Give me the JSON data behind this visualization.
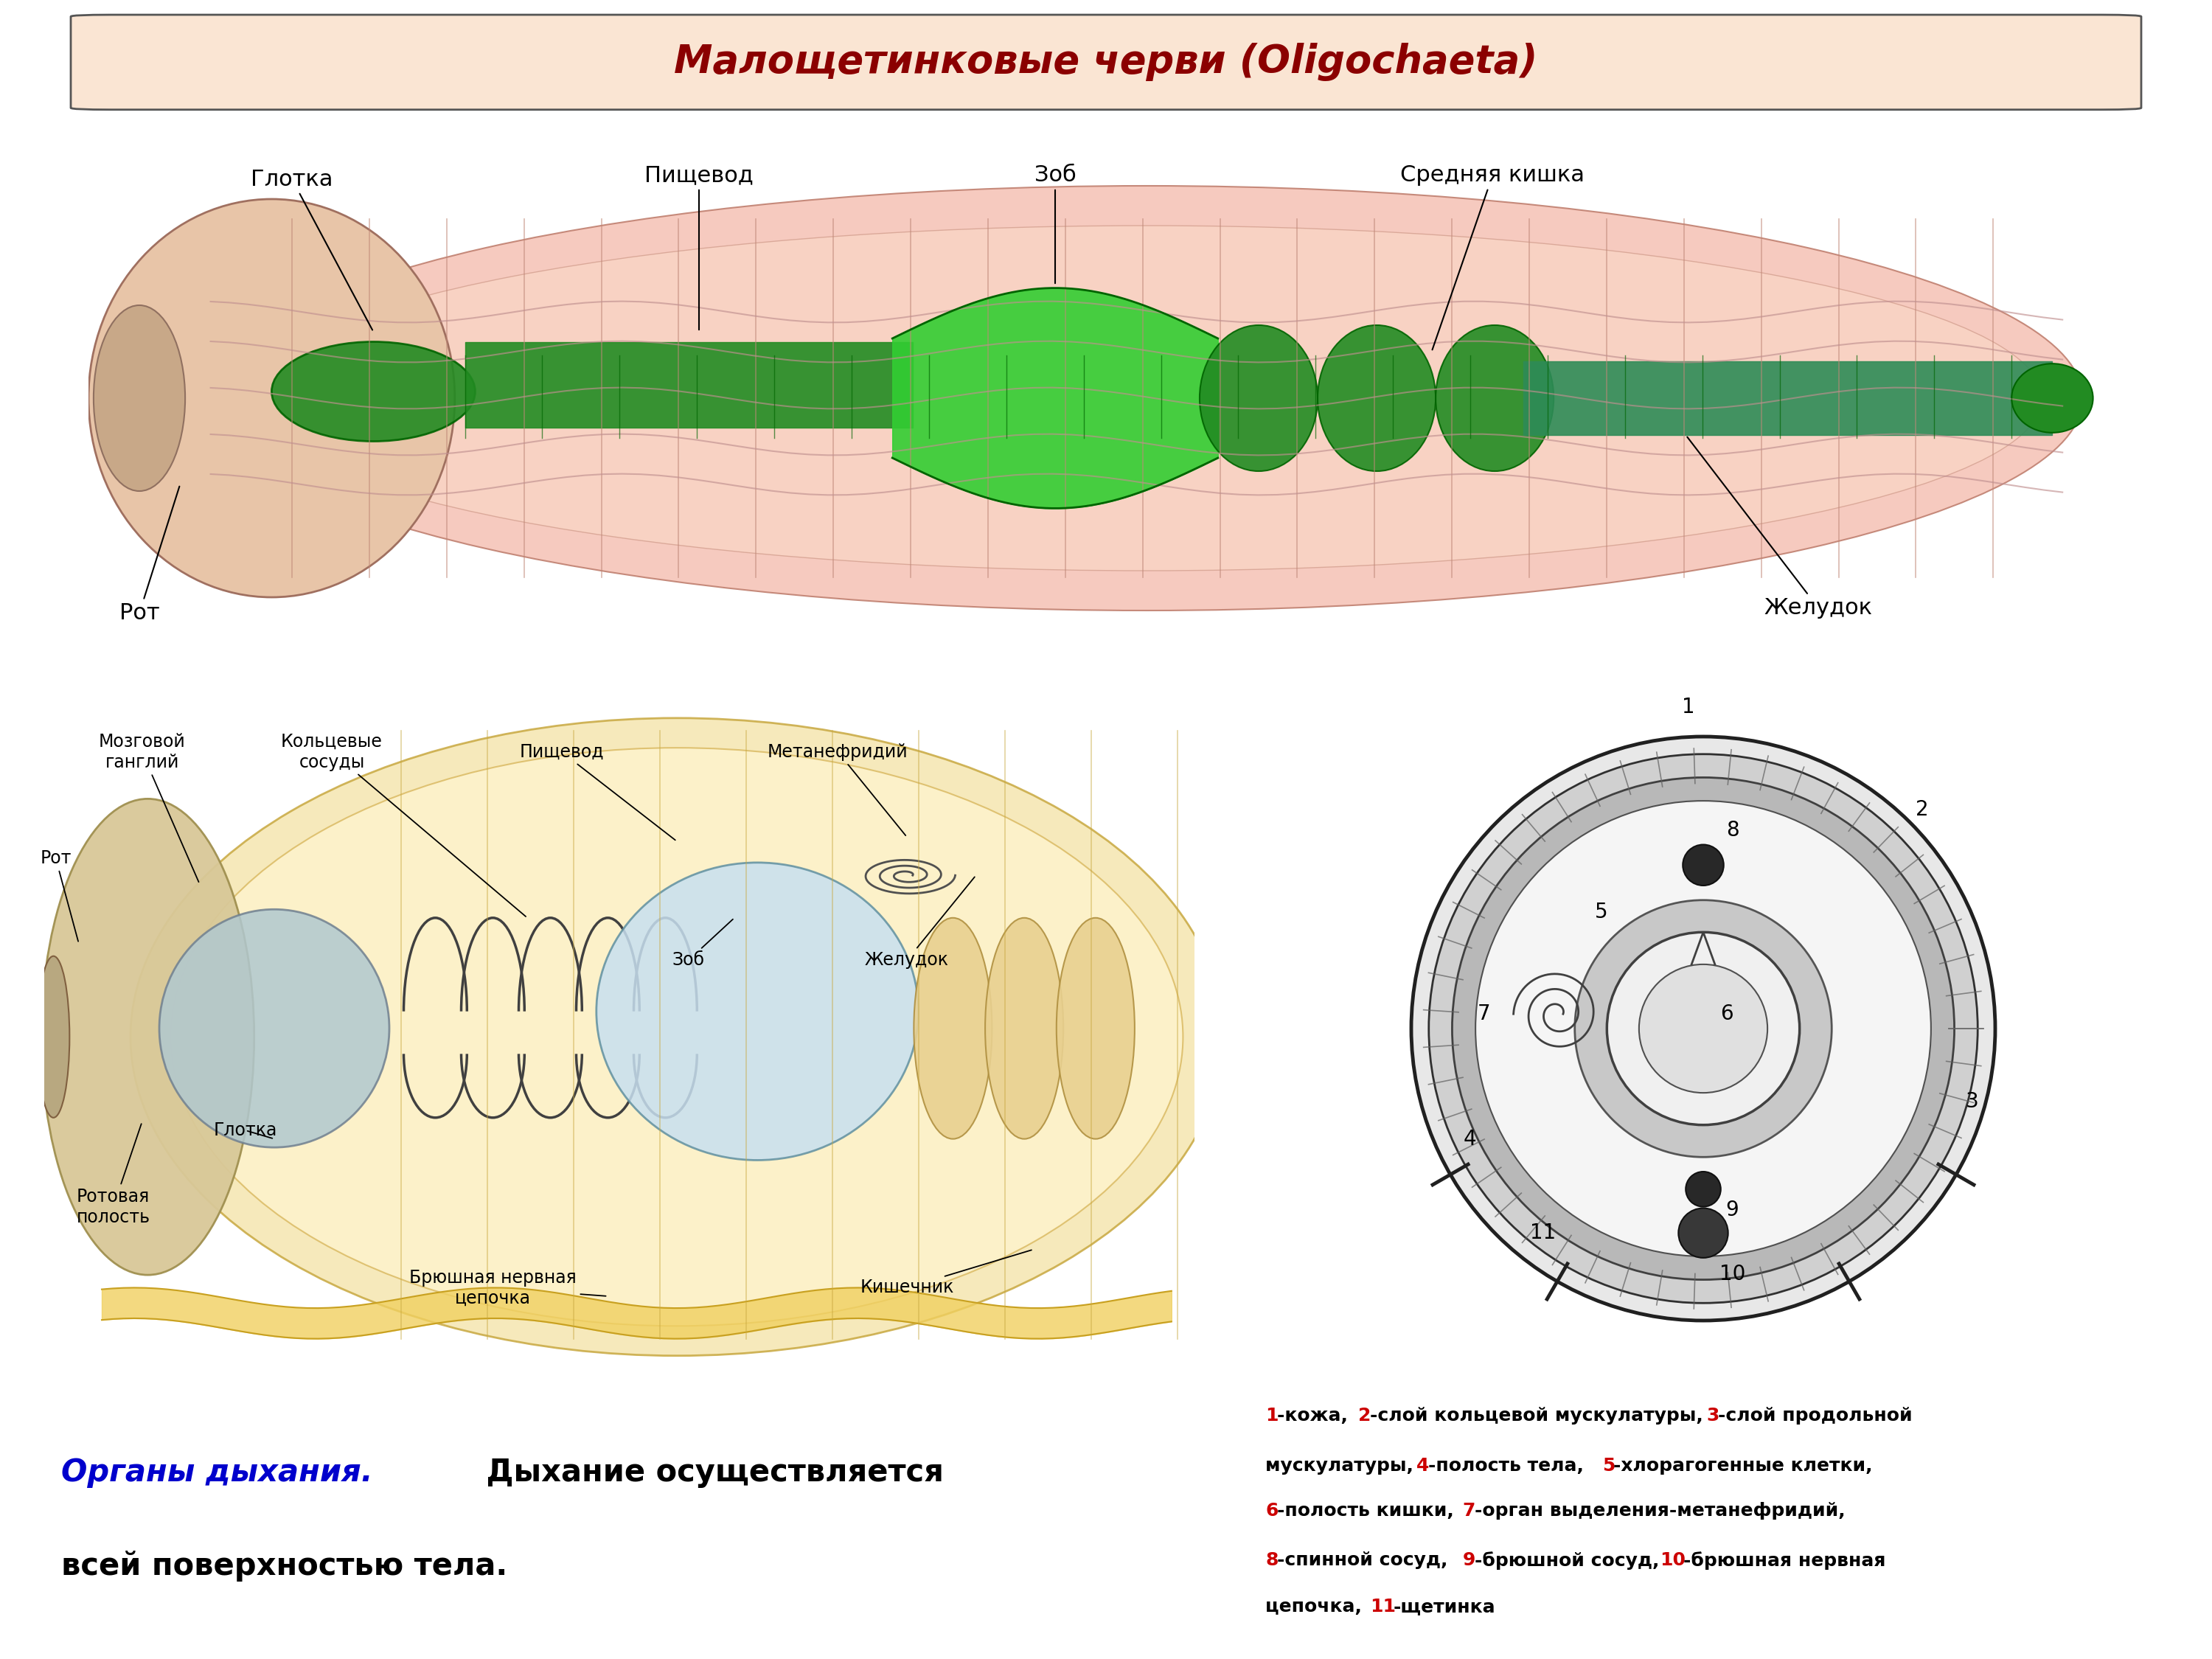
{
  "title": "Малощетинковые черви (Oligochaeta)",
  "title_color": "#8B0000",
  "title_bg": "#FAE5D3",
  "title_border": "#555555",
  "bg_color": "#FFFFFF",
  "bottom_text_italic_blue": "Органы дыхания.",
  "bottom_text_black1": " Дыхание осуществляется",
  "bottom_text_black2": "всей поверхностью тела.",
  "legend_lines": [
    [
      [
        "1",
        "#CC0000"
      ],
      [
        "-кожа, ",
        "#000000"
      ],
      [
        "2",
        "#CC0000"
      ],
      [
        "-слой кольцевой мускулатуры, ",
        "#000000"
      ],
      [
        "3",
        "#CC0000"
      ],
      [
        "-слой продольной",
        "#000000"
      ]
    ],
    [
      [
        "мускулатуры, ",
        "#000000"
      ],
      [
        "4",
        "#CC0000"
      ],
      [
        "-полость тела, ",
        "#000000"
      ],
      [
        "5",
        "#CC0000"
      ],
      [
        "-хлорагогенные клетки,",
        "#000000"
      ]
    ],
    [
      [
        "6",
        "#CC0000"
      ],
      [
        "-полость кишки, ",
        "#000000"
      ],
      [
        "7",
        "#CC0000"
      ],
      [
        "-орган выделения-метанефридий,",
        "#000000"
      ]
    ],
    [
      [
        "8",
        "#CC0000"
      ],
      [
        "-спинной сосуд, ",
        "#000000"
      ],
      [
        "9",
        "#CC0000"
      ],
      [
        "-брюшной сосуд, ",
        "#000000"
      ],
      [
        "10",
        "#CC0000"
      ],
      [
        "-брюшная нервная",
        "#000000"
      ]
    ],
    [
      [
        "цепочка, ",
        "#000000"
      ],
      [
        "11",
        "#CC0000"
      ],
      [
        "-щетинка",
        "#000000"
      ]
    ]
  ]
}
